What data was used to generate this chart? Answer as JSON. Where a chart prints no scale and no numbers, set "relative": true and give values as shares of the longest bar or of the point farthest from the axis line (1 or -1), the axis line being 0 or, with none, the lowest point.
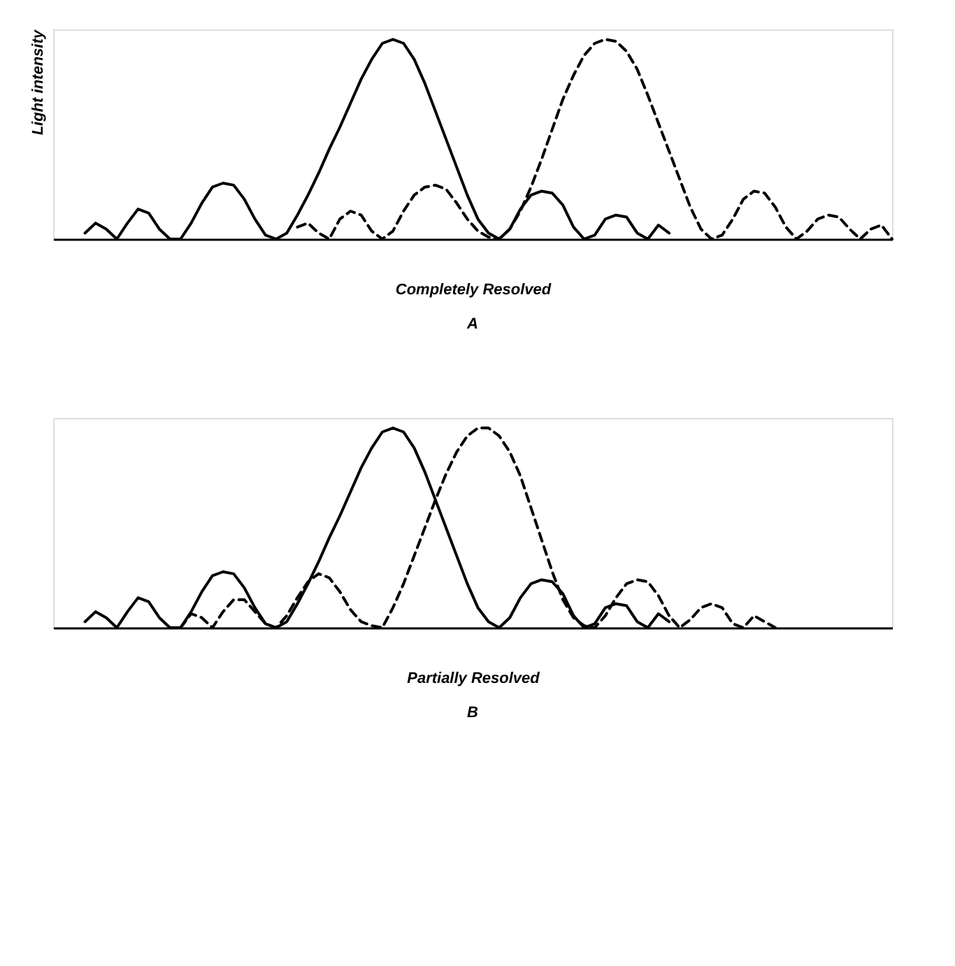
{
  "chart_data": [
    {
      "type": "line",
      "relative": true,
      "tick_labels": false,
      "ylabel": "Light intensity",
      "xlabel": "Completely Resolved",
      "title": "A",
      "categories": [
        null,
        null,
        null,
        null,
        null,
        null,
        null,
        null,
        null,
        null,
        null,
        null,
        null,
        null,
        null,
        null,
        null,
        null,
        null,
        null,
        null,
        null,
        null,
        null,
        null,
        null,
        null,
        null,
        null,
        null,
        null,
        null,
        null,
        null,
        null,
        null,
        null,
        null,
        null,
        null,
        null,
        null,
        null,
        null,
        null,
        null,
        null,
        null,
        null,
        null,
        null,
        null,
        null,
        null,
        null,
        null,
        null,
        null,
        null,
        null,
        null,
        null,
        null,
        null,
        null,
        null,
        null,
        null,
        null,
        null,
        null,
        null,
        null,
        null,
        null,
        null,
        null,
        null,
        null,
        null
      ],
      "series": [
        {
          "color": "#000000",
          "line_style": "solid",
          "values": [
            null,
            null,
            null,
            0.03,
            0.08,
            0.05,
            0,
            0.08,
            0.15,
            0.13,
            0.05,
            0,
            0,
            0.08,
            0.18,
            0.26,
            0.28,
            0.27,
            0.2,
            0.1,
            0.02,
            0,
            0.03,
            0.12,
            0.22,
            0.33,
            0.45,
            0.56,
            0.68,
            0.8,
            0.9,
            0.98,
            1,
            0.98,
            0.9,
            0.78,
            0.64,
            0.5,
            0.36,
            0.22,
            0.1,
            0.03,
            0,
            0.05,
            0.15,
            0.22,
            0.24,
            0.23,
            0.17,
            0.06,
            0,
            0.02,
            0.1,
            0.12,
            0.11,
            0.03,
            0,
            0.07,
            0.03,
            null,
            null,
            null,
            null,
            null,
            null,
            null,
            null,
            null,
            null,
            null,
            null,
            null,
            null,
            null,
            null,
            null,
            null,
            null,
            null,
            null
          ]
        },
        {
          "color": "#000000",
          "line_style": "dashed",
          "values": [
            null,
            null,
            null,
            null,
            null,
            null,
            null,
            null,
            null,
            null,
            null,
            null,
            null,
            null,
            null,
            null,
            null,
            null,
            null,
            null,
            null,
            null,
            null,
            0.06,
            0.08,
            0.03,
            0,
            0.1,
            0.14,
            0.12,
            0.04,
            0,
            0.04,
            0.14,
            0.22,
            0.26,
            0.27,
            0.25,
            0.18,
            0.1,
            0.04,
            0.01,
            0,
            0.05,
            0.14,
            0.26,
            0.4,
            0.55,
            0.7,
            0.82,
            0.92,
            0.98,
            1,
            0.99,
            0.94,
            0.85,
            0.72,
            0.58,
            0.44,
            0.3,
            0.16,
            0.05,
            0,
            0.02,
            0.1,
            0.2,
            0.24,
            0.23,
            0.16,
            0.06,
            0,
            0.04,
            0.1,
            0.12,
            0.11,
            0.05,
            0,
            0.05,
            0.07,
            0
          ]
        }
      ]
    },
    {
      "type": "line",
      "relative": true,
      "tick_labels": false,
      "xlabel": "Partially Resolved",
      "title": "B",
      "categories": [
        null,
        null,
        null,
        null,
        null,
        null,
        null,
        null,
        null,
        null,
        null,
        null,
        null,
        null,
        null,
        null,
        null,
        null,
        null,
        null,
        null,
        null,
        null,
        null,
        null,
        null,
        null,
        null,
        null,
        null,
        null,
        null,
        null,
        null,
        null,
        null,
        null,
        null,
        null,
        null,
        null,
        null,
        null,
        null,
        null,
        null,
        null,
        null,
        null,
        null,
        null,
        null,
        null,
        null,
        null,
        null,
        null,
        null,
        null,
        null,
        null,
        null,
        null,
        null,
        null,
        null,
        null,
        null,
        null,
        null,
        null,
        null,
        null,
        null,
        null,
        null,
        null,
        null,
        null,
        null
      ],
      "series": [
        {
          "color": "#000000",
          "line_style": "solid",
          "values": [
            null,
            null,
            null,
            0.03,
            0.08,
            0.05,
            0,
            0.08,
            0.15,
            0.13,
            0.05,
            0,
            0,
            0.08,
            0.18,
            0.26,
            0.28,
            0.27,
            0.2,
            0.1,
            0.02,
            0,
            0.03,
            0.12,
            0.22,
            0.33,
            0.45,
            0.56,
            0.68,
            0.8,
            0.9,
            0.98,
            1,
            0.98,
            0.9,
            0.78,
            0.64,
            0.5,
            0.36,
            0.22,
            0.1,
            0.03,
            0,
            0.05,
            0.15,
            0.22,
            0.24,
            0.23,
            0.17,
            0.06,
            0,
            0.02,
            0.1,
            0.12,
            0.11,
            0.03,
            0,
            0.07,
            0.03,
            null,
            null,
            null,
            null,
            null,
            null,
            null,
            null,
            null,
            null,
            null,
            null,
            null,
            null,
            null,
            null,
            null,
            null,
            null,
            null,
            null
          ]
        },
        {
          "color": "#000000",
          "line_style": "dashed",
          "values": [
            null,
            null,
            null,
            null,
            null,
            null,
            null,
            null,
            null,
            null,
            null,
            null,
            0,
            0.07,
            0.05,
            0,
            0.08,
            0.14,
            0.14,
            0.08,
            0.02,
            0,
            0.06,
            0.15,
            0.23,
            0.27,
            0.25,
            0.18,
            0.09,
            0.03,
            0.01,
            0,
            0.1,
            0.22,
            0.36,
            0.5,
            0.64,
            0.77,
            0.88,
            0.96,
            1,
            1,
            0.96,
            0.88,
            0.76,
            0.6,
            0.44,
            0.28,
            0.14,
            0.05,
            0.01,
            0,
            0.06,
            0.15,
            0.22,
            0.24,
            0.23,
            0.16,
            0.06,
            0,
            0.04,
            0.1,
            0.12,
            0.1,
            0.02,
            0,
            0.06,
            0.03,
            0,
            null,
            null,
            null,
            null,
            null,
            null,
            null,
            null,
            null,
            null,
            null
          ]
        }
      ]
    }
  ]
}
